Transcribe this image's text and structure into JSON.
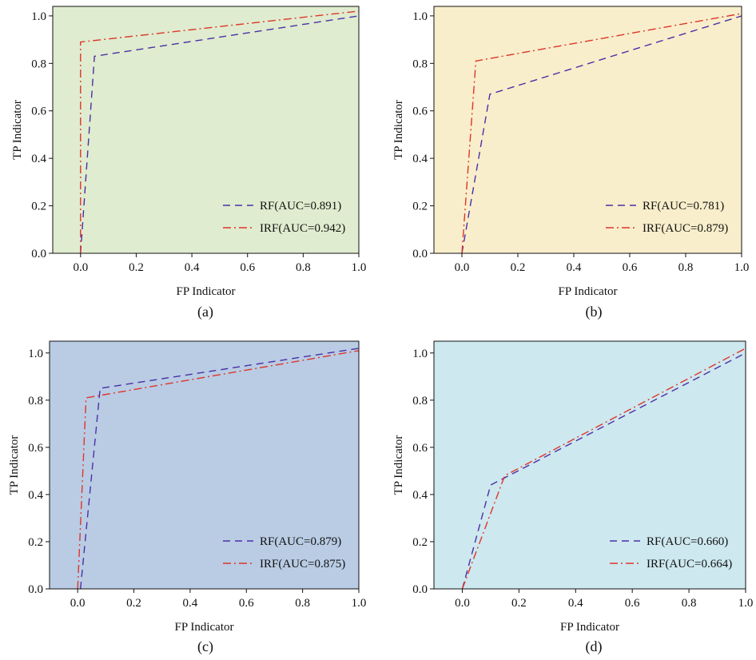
{
  "chart_data": [
    {
      "type": "line",
      "panel_label": "(a)",
      "xlabel": "FP Indicator",
      "ylabel": "TP Indicator",
      "xlim": [
        -0.1,
        1.0
      ],
      "ylim": [
        0.0,
        1.04
      ],
      "xticks": [
        0.0,
        0.2,
        0.4,
        0.6,
        0.8,
        1.0
      ],
      "yticks": [
        0.0,
        0.2,
        0.4,
        0.6,
        0.8,
        1.0
      ],
      "background": "#dfeccf",
      "legend_position": "lower-right",
      "series": [
        {
          "name": "RF(AUC=0.891)",
          "color": "#4b2fa6",
          "dash": "dashed",
          "x": [
            0.0,
            0.05,
            1.0
          ],
          "y": [
            0.0,
            0.83,
            1.0
          ]
        },
        {
          "name": "IRF(AUC=0.942)",
          "color": "#e0342a",
          "dash": "dashdot",
          "x": [
            0.0,
            0.0,
            1.0
          ],
          "y": [
            0.0,
            0.89,
            1.02
          ]
        }
      ]
    },
    {
      "type": "line",
      "panel_label": "(b)",
      "xlabel": "FP Indicator",
      "ylabel": "TP Indicator",
      "xlim": [
        -0.1,
        1.0
      ],
      "ylim": [
        0.0,
        1.04
      ],
      "xticks": [
        0.0,
        0.2,
        0.4,
        0.6,
        0.8,
        1.0
      ],
      "yticks": [
        0.0,
        0.2,
        0.4,
        0.6,
        0.8,
        1.0
      ],
      "background": "#f8eecb",
      "legend_position": "lower-right",
      "series": [
        {
          "name": "RF(AUC=0.781)",
          "color": "#4b2fa6",
          "dash": "dashed",
          "x": [
            0.0,
            0.1,
            1.0
          ],
          "y": [
            0.0,
            0.67,
            1.0
          ]
        },
        {
          "name": "IRF(AUC=0.879)",
          "color": "#e0342a",
          "dash": "dashdot",
          "x": [
            0.0,
            0.05,
            1.0
          ],
          "y": [
            0.0,
            0.81,
            1.01
          ]
        }
      ]
    },
    {
      "type": "line",
      "panel_label": "(c)",
      "xlabel": "FP Indicator",
      "ylabel": "TP Indicator",
      "xlim": [
        -0.1,
        1.0
      ],
      "ylim": [
        0.0,
        1.05
      ],
      "xticks": [
        0.0,
        0.2,
        0.4,
        0.6,
        0.8,
        1.0
      ],
      "yticks": [
        0.0,
        0.2,
        0.4,
        0.6,
        0.8,
        1.0
      ],
      "background": "#b9cce4",
      "legend_position": "lower-right",
      "series": [
        {
          "name": "RF(AUC=0.879)",
          "color": "#4b2fa6",
          "dash": "dashed",
          "x": [
            0.01,
            0.08,
            1.0
          ],
          "y": [
            0.0,
            0.85,
            1.02
          ]
        },
        {
          "name": "IRF(AUC=0.875)",
          "color": "#e0342a",
          "dash": "dashdot",
          "x": [
            0.0,
            0.03,
            1.0
          ],
          "y": [
            0.0,
            0.81,
            1.01
          ]
        }
      ]
    },
    {
      "type": "line",
      "panel_label": "(d)",
      "xlabel": "FP Indicator",
      "ylabel": "TP Indicator",
      "xlim": [
        -0.1,
        1.0
      ],
      "ylim": [
        0.0,
        1.05
      ],
      "xticks": [
        0.0,
        0.2,
        0.4,
        0.6,
        0.8,
        1.0
      ],
      "yticks": [
        0.0,
        0.2,
        0.4,
        0.6,
        0.8,
        1.0
      ],
      "background": "#cde8ef",
      "legend_position": "lower-right",
      "series": [
        {
          "name": "RF(AUC=0.660)",
          "color": "#4b2fa6",
          "dash": "dashed",
          "x": [
            0.0,
            0.1,
            1.0
          ],
          "y": [
            0.0,
            0.44,
            1.0
          ]
        },
        {
          "name": "IRF(AUC=0.664)",
          "color": "#e0342a",
          "dash": "dashdot",
          "x": [
            0.0,
            0.15,
            1.0
          ],
          "y": [
            0.0,
            0.48,
            1.02
          ]
        }
      ]
    }
  ]
}
